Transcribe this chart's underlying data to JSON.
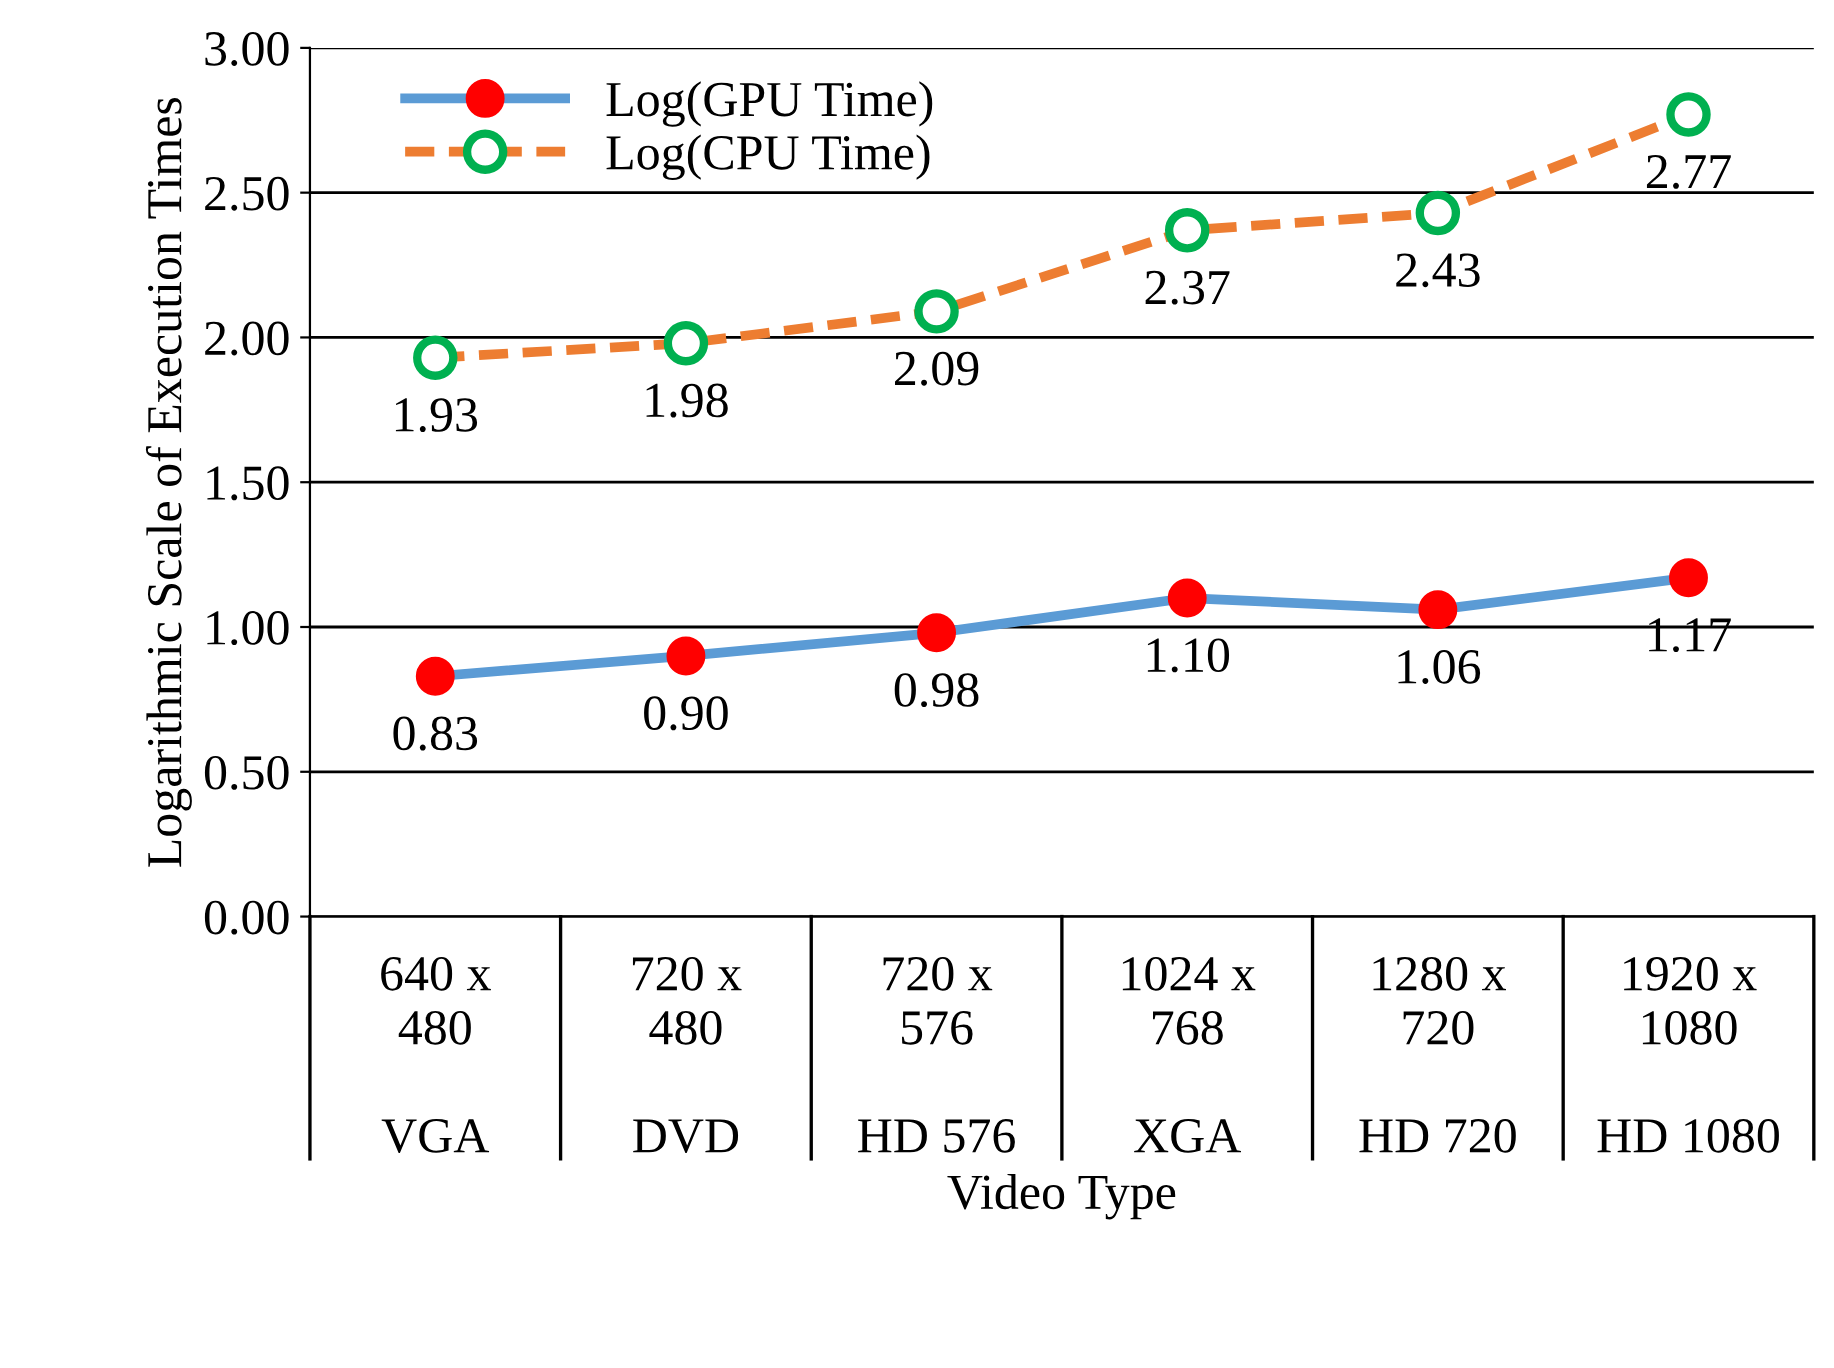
{
  "chart_data": {
    "type": "line",
    "xlabel": "Video Type",
    "ylabel": "Logarithmic Scale of Execution Times",
    "categories": [
      "640 x\n480\n\nVGA",
      "720 x\n480\n\nDVD",
      "720 x\n576\n\nHD 576",
      "1024 x\n768\n\nXGA",
      "1280 x\n720\n\nHD 720",
      "1920 x\n1080\n\nHD 1080"
    ],
    "series": [
      {
        "name": "Log(GPU Time)",
        "color": "#5b9bd5",
        "colors": [
          "#ff0000",
          "#ff0000",
          "#ff0000",
          "#ff0000",
          "#ff0000",
          "#ff0000"
        ],
        "values": [
          0.83,
          0.9,
          0.98,
          1.1,
          1.06,
          1.17
        ],
        "value_labels": [
          "0.83",
          "0.90",
          "0.98",
          "1.10",
          "1.06",
          "1.17"
        ],
        "line_style": "solid"
      },
      {
        "name": "Log(CPU Time)",
        "color": "#ed7d31",
        "colors": [
          "#00b050",
          "#00b050",
          "#00b050",
          "#00b050",
          "#00b050",
          "#00b050"
        ],
        "values": [
          1.93,
          1.98,
          2.09,
          2.37,
          2.43,
          2.77
        ],
        "value_labels": [
          "1.93",
          "1.98",
          "2.09",
          "2.37",
          "2.43",
          "2.77"
        ],
        "line_style": "dashed"
      }
    ],
    "ylim": [
      0,
      3
    ],
    "yticks": [
      {
        "value": 0,
        "label": "0.00"
      },
      {
        "value": 0.5,
        "label": "0.50"
      },
      {
        "value": 1,
        "label": "1.00"
      },
      {
        "value": 1.5,
        "label": "1.50"
      },
      {
        "value": 2,
        "label": "2.00"
      },
      {
        "value": 2.5,
        "label": "2.50"
      },
      {
        "value": 3,
        "label": "3.00"
      }
    ],
    "grid": "y",
    "legend": "top left",
    "marker": "circle"
  }
}
